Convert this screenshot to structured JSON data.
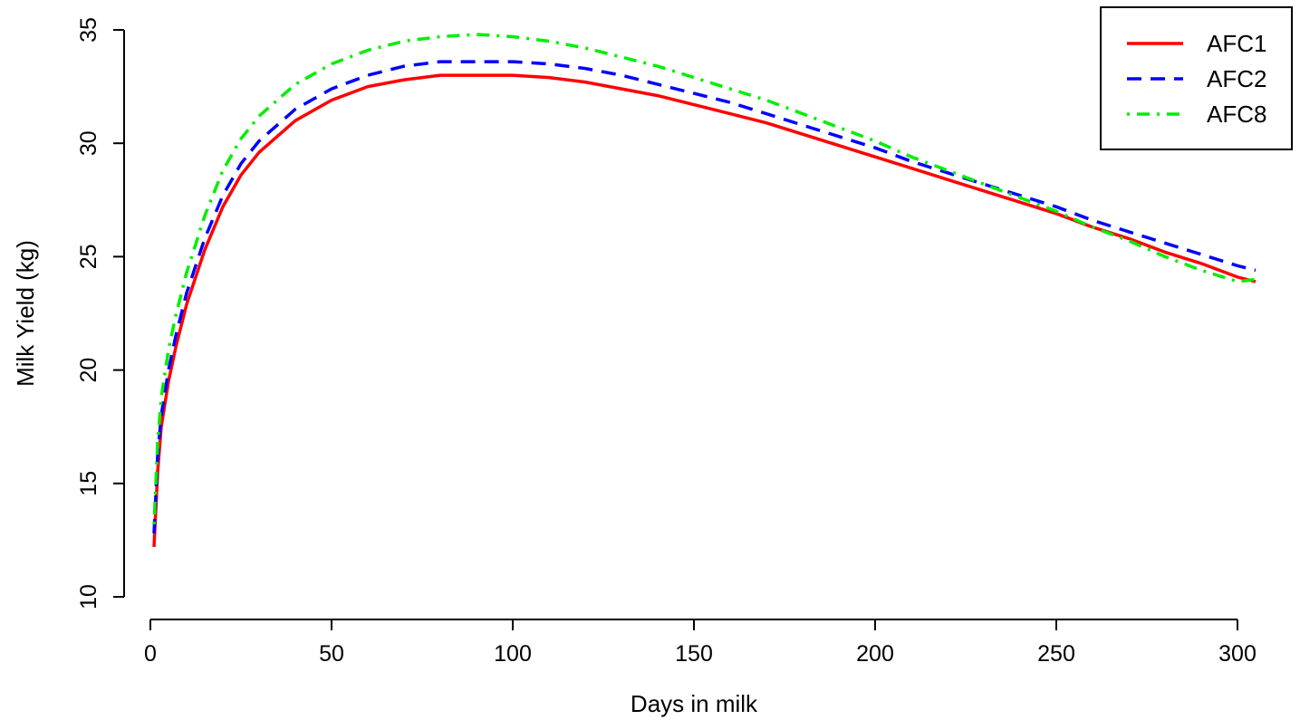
{
  "chart_data": {
    "type": "line",
    "title": "",
    "xlabel": "Days in milk",
    "ylabel": "Milk Yield (kg)",
    "xlim": [
      1,
      305
    ],
    "ylim": [
      10,
      35
    ],
    "x_ticks": [
      0,
      50,
      100,
      150,
      200,
      250,
      300
    ],
    "y_ticks": [
      10,
      15,
      20,
      25,
      30,
      35
    ],
    "grid": false,
    "legend_position": "top-right",
    "x": [
      1,
      2,
      3,
      5,
      7,
      10,
      15,
      20,
      25,
      30,
      40,
      50,
      60,
      70,
      80,
      90,
      100,
      110,
      120,
      130,
      140,
      150,
      160,
      170,
      180,
      190,
      200,
      210,
      220,
      230,
      240,
      250,
      260,
      270,
      280,
      290,
      300,
      305
    ],
    "series": [
      {
        "name": "AFC1",
        "color": "#ff0000",
        "dash": "solid",
        "values": [
          12.2,
          15.5,
          17.5,
          19.5,
          21.0,
          22.9,
          25.3,
          27.2,
          28.6,
          29.6,
          31.0,
          31.9,
          32.5,
          32.8,
          33.0,
          33.0,
          33.0,
          32.9,
          32.7,
          32.4,
          32.1,
          31.7,
          31.3,
          30.9,
          30.4,
          29.9,
          29.4,
          28.9,
          28.4,
          27.9,
          27.4,
          26.9,
          26.3,
          25.8,
          25.2,
          24.7,
          24.1,
          23.9
        ]
      },
      {
        "name": "AFC2",
        "color": "#0000ff",
        "dash": "dashed",
        "values": [
          12.8,
          16.2,
          18.0,
          20.0,
          21.5,
          23.4,
          25.8,
          27.7,
          29.1,
          30.1,
          31.5,
          32.4,
          33.0,
          33.4,
          33.6,
          33.6,
          33.6,
          33.5,
          33.3,
          33.0,
          32.6,
          32.2,
          31.8,
          31.3,
          30.8,
          30.3,
          29.8,
          29.2,
          28.7,
          28.2,
          27.7,
          27.2,
          26.6,
          26.1,
          25.6,
          25.1,
          24.6,
          24.4
        ]
      },
      {
        "name": "AFC8",
        "color": "#00ee00",
        "dash": "dotdash",
        "values": [
          13.2,
          16.8,
          18.8,
          20.9,
          22.4,
          24.3,
          26.8,
          28.8,
          30.2,
          31.2,
          32.6,
          33.5,
          34.1,
          34.5,
          34.7,
          34.8,
          34.7,
          34.5,
          34.2,
          33.8,
          33.4,
          32.9,
          32.4,
          31.9,
          31.3,
          30.7,
          30.1,
          29.4,
          28.8,
          28.2,
          27.6,
          27.0,
          26.3,
          25.7,
          25.0,
          24.4,
          23.9,
          24.0
        ]
      }
    ]
  }
}
